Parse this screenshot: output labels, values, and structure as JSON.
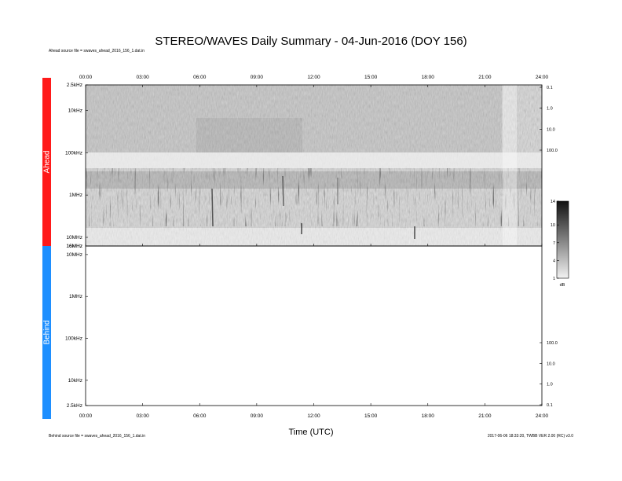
{
  "chart_data": {
    "type": "heatmap",
    "title": "STEREO/WAVES Daily Summary - 04-Jun-2016 (DOY 156)",
    "xlabel": "Time (UTC)",
    "x_ticks": [
      "00:00",
      "03:00",
      "06:00",
      "09:00",
      "12:00",
      "15:00",
      "18:00",
      "21:00",
      "24:00"
    ],
    "xlim_hours": [
      0,
      24
    ],
    "panels": [
      {
        "name": "Ahead",
        "color": "#ff1a1a",
        "source_text": "Ahead source file = swaves_ahead_2016_156_1.dat.in",
        "y_ticks": [
          "2.5kHz",
          "10kHz",
          "100kHz",
          "1MHz",
          "10MHz",
          "16MHz"
        ],
        "right_ticks": [
          "0.1",
          "1.0",
          "10.0",
          "100.0"
        ],
        "has_data": true
      },
      {
        "name": "Behind",
        "color": "#1e8fff",
        "source_text": "Behind source file = swaves_ahead_2016_156_1.dat.in",
        "y_ticks": [
          "16MHz",
          "10MHz",
          "1MHz",
          "100kHz",
          "10kHz",
          "2.5kHz"
        ],
        "right_ticks": [
          "100.0",
          "10.0",
          "1.0",
          "0.1"
        ],
        "has_data": false
      }
    ],
    "colorbar": {
      "ticks": [
        "14",
        "10",
        "7",
        "4",
        "1"
      ],
      "unit": "dB",
      "range": [
        1,
        14
      ]
    },
    "version_text": "2017-06-06 18:33:20, TWBB VER 2.00 (RC) v3.0"
  }
}
